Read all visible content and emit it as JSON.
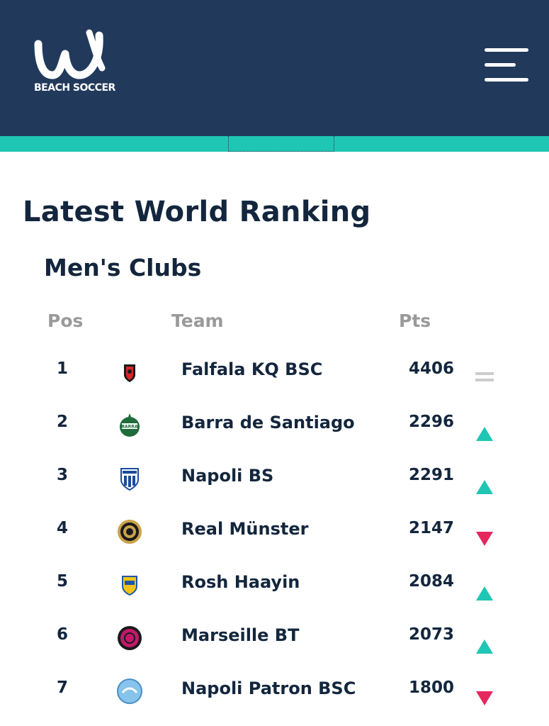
{
  "header": {
    "logo_text": "BEACH SOCCER",
    "logo_icon": "bsww-logo-icon",
    "menu_icon": "hamburger-menu-icon",
    "bg_color": "#213a5c",
    "accent_color": "#1fc6b4"
  },
  "page": {
    "title": "Latest World Ranking",
    "section": "Men's Clubs"
  },
  "table": {
    "headers": {
      "pos": "Pos",
      "team": "Team",
      "pts": "Pts"
    },
    "rows": [
      {
        "pos": "1",
        "team": "Falfala KQ BSC",
        "pts": "4406",
        "trend": "same",
        "crest": "falfala-crest"
      },
      {
        "pos": "2",
        "team": "Barra de Santiago",
        "pts": "2296",
        "trend": "up",
        "crest": "barra-crest"
      },
      {
        "pos": "3",
        "team": "Napoli BS",
        "pts": "2291",
        "trend": "up",
        "crest": "napoli-bs-crest"
      },
      {
        "pos": "4",
        "team": "Real Münster",
        "pts": "2147",
        "trend": "down",
        "crest": "real-munster-crest"
      },
      {
        "pos": "5",
        "team": "Rosh Haayin",
        "pts": "2084",
        "trend": "up",
        "crest": "rosh-haayin-crest"
      },
      {
        "pos": "6",
        "team": "Marseille BT",
        "pts": "2073",
        "trend": "up",
        "crest": "marseille-crest"
      },
      {
        "pos": "7",
        "team": "Napoli Patron BSC",
        "pts": "1800",
        "trend": "down",
        "crest": "napoli-patron-crest"
      }
    ]
  },
  "colors": {
    "up": "#1fc6b4",
    "down": "#e8265e",
    "same": "#cccccc"
  }
}
